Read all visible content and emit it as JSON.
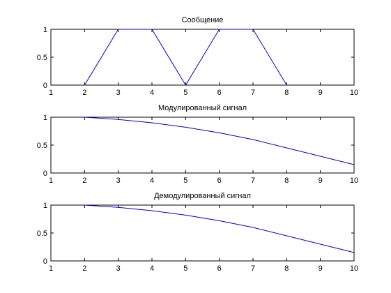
{
  "chart_data": [
    {
      "type": "line",
      "title": "Сообщение",
      "xlabel": "",
      "ylabel": "",
      "xlim": [
        1,
        10
      ],
      "ylim": [
        0,
        1
      ],
      "xticks": [
        1,
        2,
        3,
        4,
        5,
        6,
        7,
        8,
        9,
        10
      ],
      "yticks": [
        0,
        0.5,
        1
      ],
      "grid": false,
      "series": [
        {
          "color": "#0000cc",
          "x": [
            2,
            3,
            4,
            5,
            6,
            7,
            8
          ],
          "y": [
            0,
            1,
            1,
            0,
            1,
            1,
            0
          ]
        }
      ]
    },
    {
      "type": "line",
      "title": "Модулированный сигнал",
      "xlabel": "",
      "ylabel": "",
      "xlim": [
        1,
        10
      ],
      "ylim": [
        0,
        1
      ],
      "xticks": [
        1,
        2,
        3,
        4,
        5,
        6,
        7,
        8,
        9,
        10
      ],
      "yticks": [
        0,
        0.5,
        1
      ],
      "grid": false,
      "series": [
        {
          "color": "#0000cc",
          "x": [
            2,
            3,
            4,
            5,
            6,
            7,
            8,
            9,
            10
          ],
          "y": [
            1.0,
            0.96,
            0.9,
            0.82,
            0.72,
            0.6,
            0.45,
            0.3,
            0.15
          ]
        }
      ]
    },
    {
      "type": "line",
      "title": "Демодулированный сигнал",
      "xlabel": "",
      "ylabel": "",
      "xlim": [
        1,
        10
      ],
      "ylim": [
        0,
        1
      ],
      "xticks": [
        1,
        2,
        3,
        4,
        5,
        6,
        7,
        8,
        9,
        10
      ],
      "yticks": [
        0,
        0.5,
        1
      ],
      "grid": false,
      "series": [
        {
          "color": "#0000cc",
          "x": [
            2,
            3,
            4,
            5,
            6,
            7,
            8,
            9,
            10
          ],
          "y": [
            1.0,
            0.96,
            0.9,
            0.82,
            0.72,
            0.6,
            0.45,
            0.3,
            0.15
          ]
        }
      ]
    }
  ]
}
